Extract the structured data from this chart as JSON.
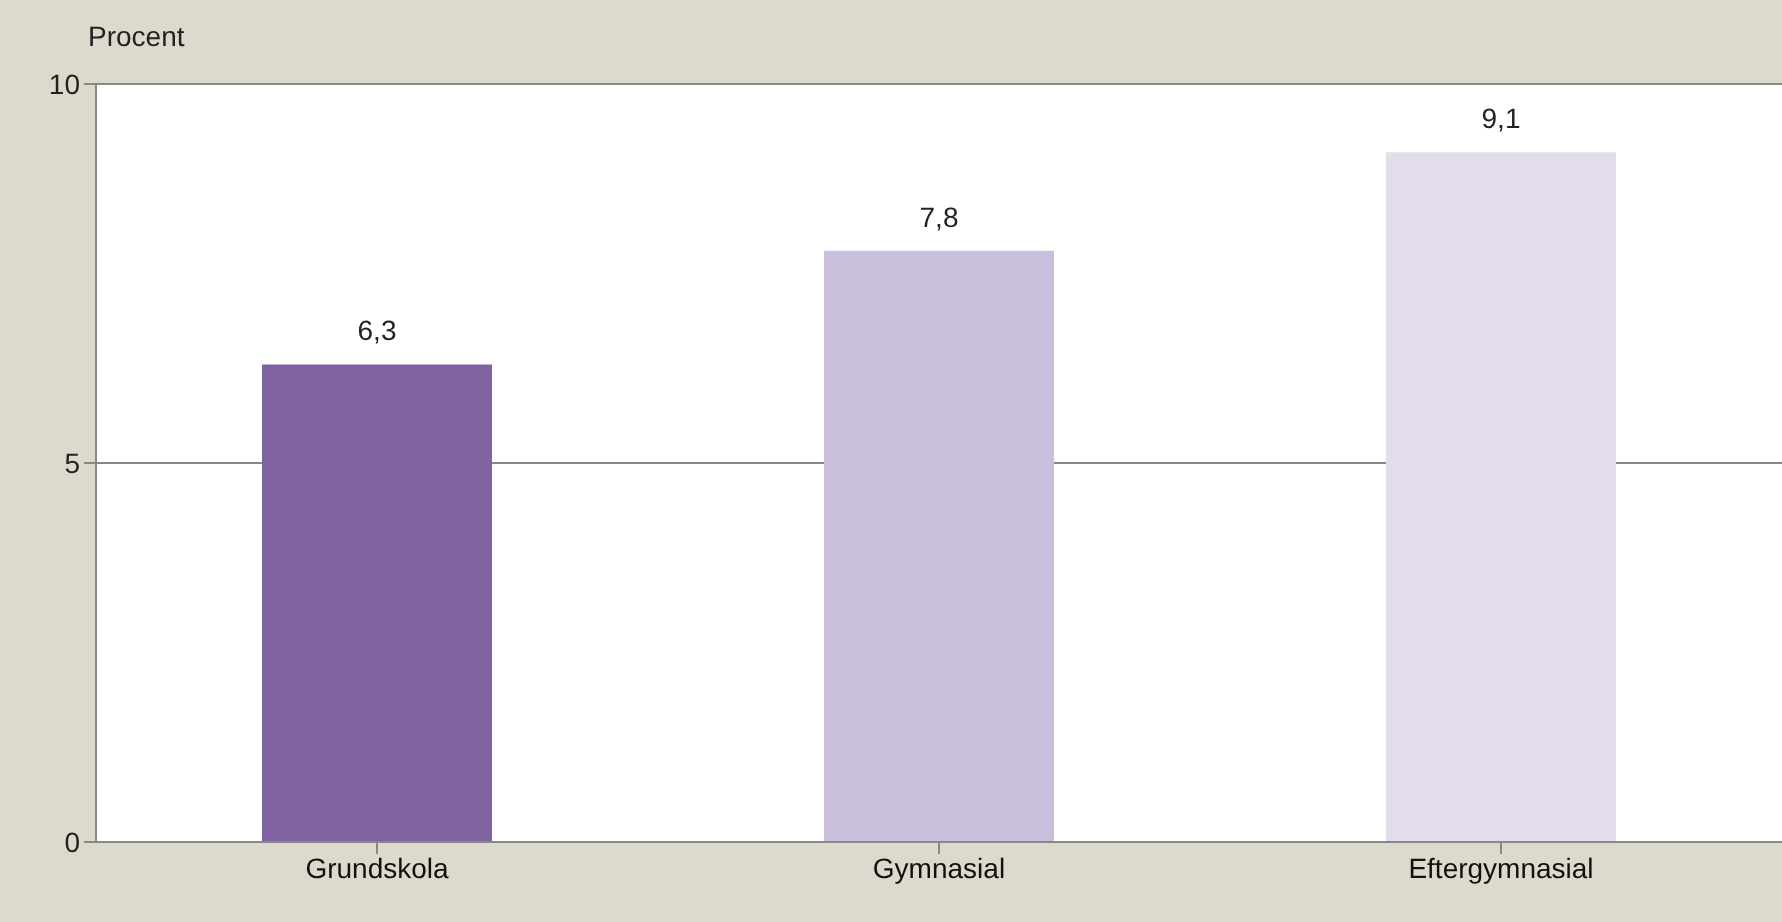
{
  "chart_data": {
    "type": "bar",
    "ylabel": "Procent",
    "categories": [
      "Grundskola",
      "Gymnasial",
      "Eftergymnasial"
    ],
    "values": [
      6.3,
      7.8,
      9.1
    ],
    "colors": [
      "#8064a2",
      "#c9bedb",
      "#e3dcea"
    ],
    "value_labels": [
      "6,3",
      "7,8",
      "9,1"
    ],
    "ylim": [
      0,
      10
    ],
    "yticks": [
      0,
      5,
      10
    ],
    "grid": "y"
  }
}
